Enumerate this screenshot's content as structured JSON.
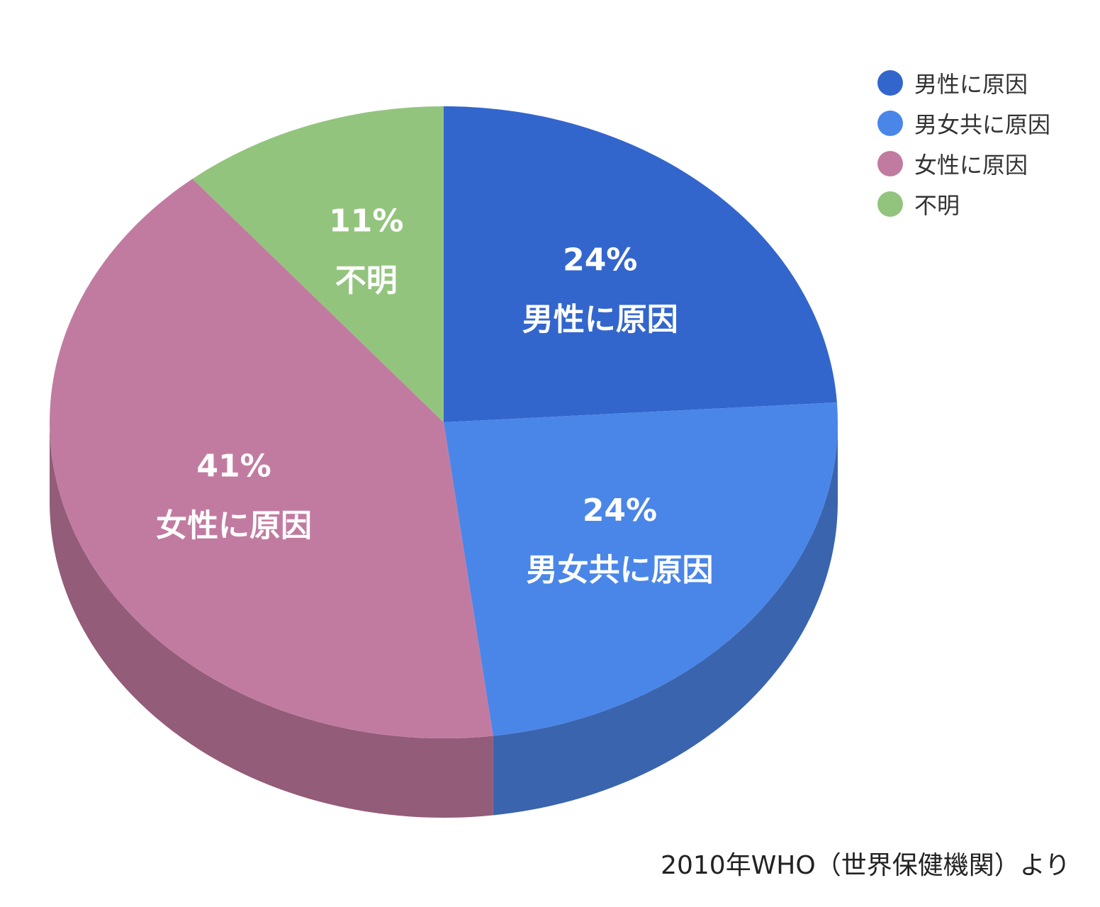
{
  "chart_data": {
    "type": "pie",
    "style": "3d",
    "slices": [
      {
        "name": "男性に原因",
        "value": 24,
        "label": "24%",
        "color": "#3366CC",
        "side_color": "#3A64AD"
      },
      {
        "name": "男女共に原因",
        "value": 24,
        "label": "24%",
        "color": "#4A86E8",
        "side_color": "#3A64AD"
      },
      {
        "name": "女性に原因",
        "value": 41,
        "label": "41%",
        "color": "#C27BA0",
        "side_color": "#935C79"
      },
      {
        "name": "不明",
        "value": 11,
        "label": "11%",
        "color": "#93C47D",
        "side_color": "#6E935E"
      }
    ],
    "legend_position": "top-right"
  },
  "legend": {
    "items": [
      {
        "label": "男性に原因",
        "color": "#3366CC"
      },
      {
        "label": "男女共に原因",
        "color": "#4A86E8"
      },
      {
        "label": "女性に原因",
        "color": "#C27BA0"
      },
      {
        "label": "不明",
        "color": "#93C47D"
      }
    ]
  },
  "source": "2010年WHO（世界保健機関）より"
}
